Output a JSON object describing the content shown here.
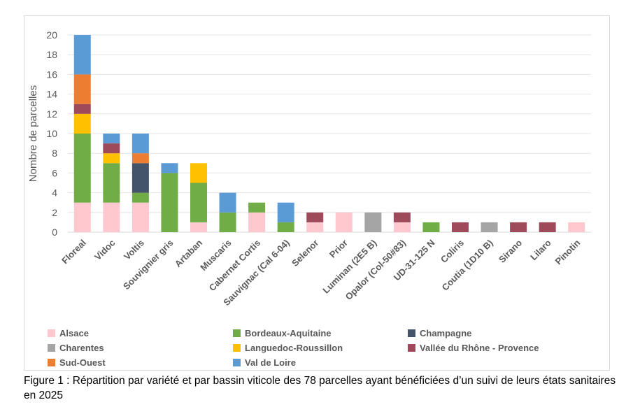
{
  "chart_data": {
    "type": "bar",
    "stacked": true,
    "ylabel": "Nombre de parcelles",
    "ylim": [
      0,
      20
    ],
    "yticks": [
      0,
      2,
      4,
      6,
      8,
      10,
      12,
      14,
      16,
      18,
      20
    ],
    "grid": true,
    "legend_position": "bottom",
    "categories": [
      "Floreal",
      "Vidoc",
      "Voltis",
      "Souvignier gris",
      "Artaban",
      "Muscaris",
      "Cabernet Cortis",
      "Sauvignac (Cal 6-04)",
      "Selenor",
      "Prior",
      "Luminan (2E5 B)",
      "Opalor (Col-50#83)",
      "UD-31-125 N",
      "Coliris",
      "Coutia (1D10 B)",
      "Sirano",
      "Lilaro",
      "Pinotin"
    ],
    "series": [
      {
        "name": "Alsace",
        "color": "#ffc7ce",
        "values": [
          3,
          3,
          3,
          0,
          1,
          0,
          2,
          0,
          1,
          2,
          0,
          1,
          0,
          0,
          0,
          0,
          0,
          1
        ]
      },
      {
        "name": "Bordeaux-Aquitaine",
        "color": "#70ad47",
        "values": [
          7,
          4,
          1,
          6,
          4,
          2,
          1,
          1,
          0,
          0,
          0,
          0,
          1,
          0,
          0,
          0,
          0,
          0
        ]
      },
      {
        "name": "Champagne",
        "color": "#44546a",
        "values": [
          0,
          0,
          3,
          0,
          0,
          0,
          0,
          0,
          0,
          0,
          0,
          0,
          0,
          0,
          0,
          0,
          0,
          0
        ]
      },
      {
        "name": "Charentes",
        "color": "#a5a5a5",
        "values": [
          0,
          0,
          0,
          0,
          0,
          0,
          0,
          0,
          0,
          0,
          2,
          0,
          0,
          0,
          1,
          0,
          0,
          0
        ]
      },
      {
        "name": "Languedoc-Roussillon",
        "color": "#ffc000",
        "values": [
          2,
          1,
          0,
          0,
          2,
          0,
          0,
          0,
          0,
          0,
          0,
          0,
          0,
          0,
          0,
          0,
          0,
          0
        ]
      },
      {
        "name": "Vallée du Rhône - Provence",
        "color": "#9e4a5a",
        "values": [
          1,
          1,
          0,
          0,
          0,
          0,
          0,
          0,
          1,
          0,
          0,
          1,
          0,
          1,
          0,
          1,
          1,
          0
        ]
      },
      {
        "name": "Sud-Ouest",
        "color": "#ed7d31",
        "values": [
          3,
          0,
          1,
          0,
          0,
          0,
          0,
          0,
          0,
          0,
          0,
          0,
          0,
          0,
          0,
          0,
          0,
          0
        ]
      },
      {
        "name": "Val de Loire",
        "color": "#5b9bd5",
        "values": [
          4,
          1,
          2,
          1,
          0,
          2,
          0,
          2,
          0,
          0,
          0,
          0,
          0,
          0,
          0,
          0,
          0,
          0
        ]
      }
    ]
  },
  "caption": "Figure 1 : Répartition par variété et par bassin viticole des 78 parcelles ayant bénéficiées d’un suivi de leurs états sanitaires en 2025"
}
